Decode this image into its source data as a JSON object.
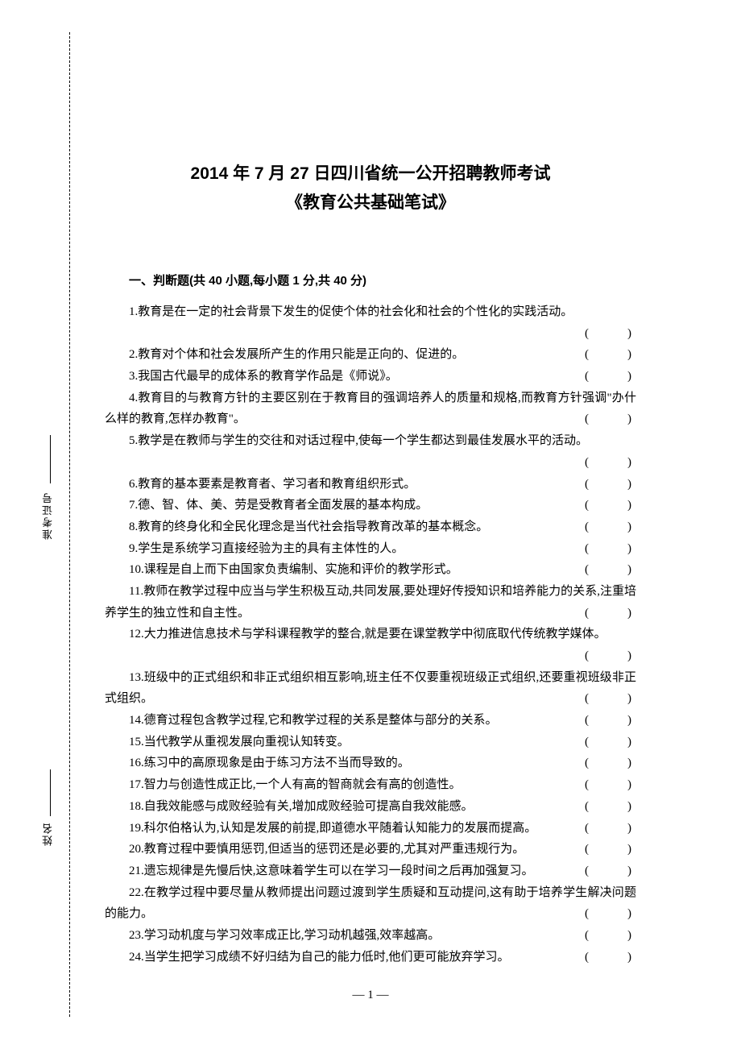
{
  "doc": {
    "title": "2014 年 7 月 27 日四川省统一公开招聘教师考试",
    "subtitle": "《教育公共基础笔试》",
    "section_heading": "一、判断题(共 40 小题,每小题 1 分,共 40 分)",
    "page_number": "— 1 —",
    "binding_labels": {
      "exam_id": "准考证号",
      "name": "姓名"
    },
    "answer_blank": "(　　)",
    "font_family": "SimSun",
    "heading_font": "SimHei",
    "text_color": "#000000",
    "background_color": "#ffffff",
    "body_fontsize_pt": 11,
    "title_fontsize_pt": 16,
    "line_height": 1.78,
    "questions": [
      "1.教育是在一定的社会背景下发生的促使个体的社会化和社会的个性化的实践活动。",
      "2.教育对个体和社会发展所产生的作用只能是正向的、促进的。",
      "3.我国古代最早的成体系的教育学作品是《师说》。",
      "4.教育目的与教育方针的主要区别在于教育目的强调培养人的质量和规格,而教育方针强调\"办什么样的教育,怎样办教育\"。",
      "5.教学是在教师与学生的交往和对话过程中,使每一个学生都达到最佳发展水平的活动。",
      "6.教育的基本要素是教育者、学习者和教育组织形式。",
      "7.德、智、体、美、劳是受教育者全面发展的基本构成。",
      "8.教育的终身化和全民化理念是当代社会指导教育改革的基本概念。",
      "9.学生是系统学习直接经验为主的具有主体性的人。",
      "10.课程是自上而下由国家负责编制、实施和评价的教学形式。",
      "11.教师在教学过程中应当与学生积极互动,共同发展,要处理好传授知识和培养能力的关系,注重培养学生的独立性和自主性。",
      "12.大力推进信息技术与学科课程教学的整合,就是要在课堂教学中彻底取代传统教学媒体。",
      "13.班级中的正式组织和非正式组织相互影响,班主任不仅要重视班级正式组织,还要重视班级非正式组织。",
      "14.德育过程包含教学过程,它和教学过程的关系是整体与部分的关系。",
      "15.当代教学从重视发展向重视认知转变。",
      "16.练习中的高原现象是由于练习方法不当而导致的。",
      "17.智力与创造性成正比,一个人有高的智商就会有高的创造性。",
      "18.自我效能感与成败经验有关,增加成败经验可提高自我效能感。",
      "19.科尔伯格认为,认知是发展的前提,即道德水平随着认知能力的发展而提高。",
      "20.教育过程中要慎用惩罚,但适当的惩罚还是必要的,尤其对严重违规行为。",
      "21.遗忘规律是先慢后快,这意味着学生可以在学习一段时间之后再加强复习。",
      "22.在教学过程中要尽量从教师提出问题过渡到学生质疑和互动提问,这有助于培养学生解决问题的能力。",
      "23.学习动机度与学习效率成正比,学习动机越强,效率越高。",
      "24.当学生把学习成绩不好归结为自己的能力低时,他们更可能放弃学习。"
    ]
  }
}
